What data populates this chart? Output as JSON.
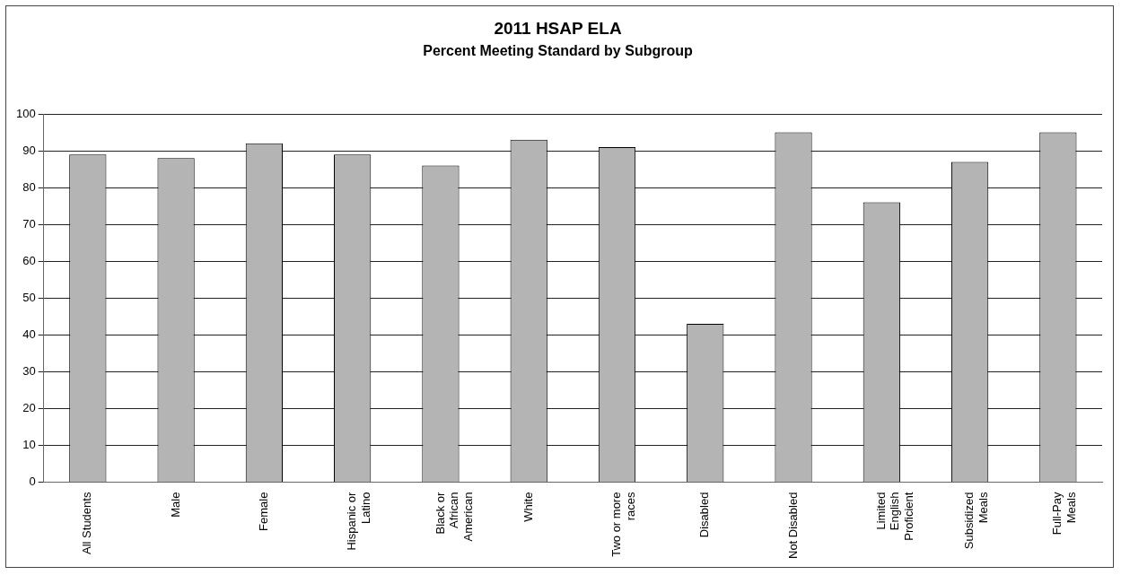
{
  "chart_data": {
    "type": "bar",
    "title": "2011 HSAP ELA",
    "subtitle": "Percent Meeting Standard by Subgroup",
    "categories": [
      "All Students",
      "Male",
      "Female",
      "Hispanic or Latino",
      "Black or African American",
      "White",
      "Two or more races",
      "Disabled",
      "Not Disabled",
      "Limited English Proficient",
      "Subsidized Meals",
      "Full-Pay Meals"
    ],
    "values": [
      89,
      88,
      92,
      89,
      86,
      93,
      91,
      43,
      95,
      76,
      87,
      95
    ],
    "color": "#b4b4b4",
    "ylim": [
      0,
      100
    ],
    "yticks": [
      0,
      10,
      20,
      30,
      40,
      50,
      60,
      70,
      80,
      90,
      100
    ],
    "grid": "y",
    "legend": false
  }
}
